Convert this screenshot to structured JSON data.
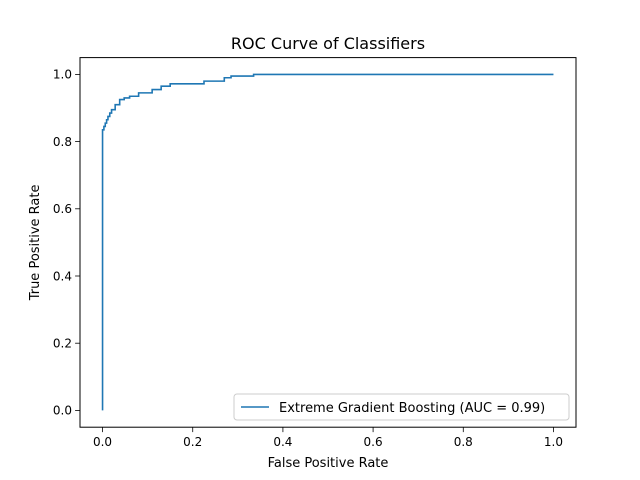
{
  "chart_data": {
    "type": "line",
    "title": "ROC Curve of Classifiers",
    "xlabel": "False Positive Rate",
    "ylabel": "True Positive Rate",
    "xlim": [
      -0.05,
      1.05
    ],
    "ylim": [
      -0.05,
      1.05
    ],
    "xticks": [
      0.0,
      0.2,
      0.4,
      0.6,
      0.8,
      1.0
    ],
    "yticks": [
      0.0,
      0.2,
      0.4,
      0.6,
      0.8,
      1.0
    ],
    "xtick_labels": [
      "0.0",
      "0.2",
      "0.4",
      "0.6",
      "0.8",
      "1.0"
    ],
    "ytick_labels": [
      "0.0",
      "0.2",
      "0.4",
      "0.6",
      "0.8",
      "1.0"
    ],
    "grid": false,
    "legend_position": "lower-right",
    "series": [
      {
        "name": "Extreme Gradient Boosting (AUC = 0.99)",
        "color": "#1f77b4",
        "x": [
          0.0,
          0.0,
          0.003,
          0.003,
          0.006,
          0.006,
          0.009,
          0.009,
          0.012,
          0.012,
          0.016,
          0.016,
          0.02,
          0.02,
          0.028,
          0.028,
          0.038,
          0.038,
          0.048,
          0.048,
          0.06,
          0.06,
          0.08,
          0.08,
          0.11,
          0.11,
          0.13,
          0.13,
          0.15,
          0.15,
          0.225,
          0.225,
          0.27,
          0.27,
          0.285,
          0.285,
          0.335,
          0.335,
          1.0
        ],
        "y": [
          0.0,
          0.835,
          0.835,
          0.845,
          0.845,
          0.855,
          0.855,
          0.865,
          0.865,
          0.875,
          0.875,
          0.885,
          0.885,
          0.895,
          0.895,
          0.91,
          0.91,
          0.925,
          0.925,
          0.93,
          0.93,
          0.935,
          0.935,
          0.945,
          0.945,
          0.955,
          0.955,
          0.965,
          0.965,
          0.972,
          0.972,
          0.98,
          0.98,
          0.99,
          0.99,
          0.995,
          0.995,
          1.0,
          1.0
        ]
      }
    ]
  }
}
